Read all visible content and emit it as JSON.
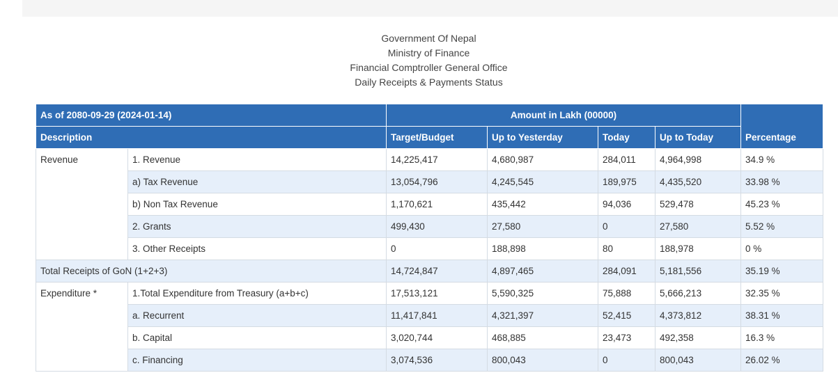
{
  "header": {
    "line1": "Government Of Nepal",
    "line2": "Ministry of Finance",
    "line3": "Financial Comptroller General Office",
    "line4": "Daily Receipts & Payments Status"
  },
  "table": {
    "as_of": "As of 2080-09-29 (2024-01-14)",
    "amount_label": "Amount in Lakh (00000)",
    "columns": {
      "description": "Description",
      "target": "Target/Budget",
      "yesterday": "Up to Yesterday",
      "today": "Today",
      "up_to_today": "Up to Today",
      "percentage": "Percentage"
    },
    "groups": {
      "revenue": "Revenue",
      "expenditure": "Expenditure *"
    },
    "rows": [
      {
        "label": "1. Revenue",
        "target": "14,225,417",
        "yesterday": "4,680,987",
        "today": "284,011",
        "up_to_today": "4,964,998",
        "percentage": "34.9 %"
      },
      {
        "label": "a) Tax Revenue",
        "target": "13,054,796",
        "yesterday": "4,245,545",
        "today": "189,975",
        "up_to_today": "4,435,520",
        "percentage": "33.98 %"
      },
      {
        "label": "b) Non Tax Revenue",
        "target": "1,170,621",
        "yesterday": "435,442",
        "today": "94,036",
        "up_to_today": "529,478",
        "percentage": "45.23 %"
      },
      {
        "label": "2. Grants",
        "target": "499,430",
        "yesterday": "27,580",
        "today": "0",
        "up_to_today": "27,580",
        "percentage": "5.52 %"
      },
      {
        "label": "3. Other Receipts",
        "target": "0",
        "yesterday": "188,898",
        "today": "80",
        "up_to_today": "188,978",
        "percentage": "0 %"
      },
      {
        "label": "Total Receipts of GoN (1+2+3)",
        "target": "14,724,847",
        "yesterday": "4,897,465",
        "today": "284,091",
        "up_to_today": "5,181,556",
        "percentage": "35.19 %"
      },
      {
        "label": "1.Total Expenditure from Treasury (a+b+c)",
        "target": "17,513,121",
        "yesterday": "5,590,325",
        "today": "75,888",
        "up_to_today": "5,666,213",
        "percentage": "32.35 %"
      },
      {
        "label": "a. Recurrent",
        "target": "11,417,841",
        "yesterday": "4,321,397",
        "today": "52,415",
        "up_to_today": "4,373,812",
        "percentage": "38.31 %"
      },
      {
        "label": "b. Capital",
        "target": "3,020,744",
        "yesterday": "468,885",
        "today": "23,473",
        "up_to_today": "492,358",
        "percentage": "16.3 %"
      },
      {
        "label": "c. Financing",
        "target": "3,074,536",
        "yesterday": "800,043",
        "today": "0",
        "up_to_today": "800,043",
        "percentage": "26.02 %"
      }
    ]
  }
}
